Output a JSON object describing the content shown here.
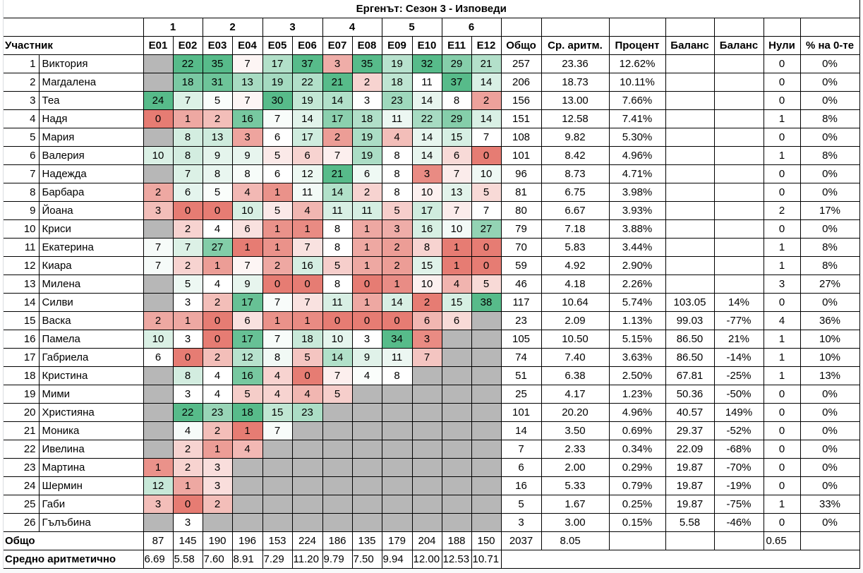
{
  "title": "Ергенът: Сезон 3 - Изповеди",
  "groups": [
    "1",
    "2",
    "3",
    "4",
    "5",
    "6"
  ],
  "headers": {
    "participant": "Участник",
    "episodes": [
      "E01",
      "E02",
      "E03",
      "E04",
      "E05",
      "E06",
      "E07",
      "E08",
      "E09",
      "E10",
      "E11",
      "E12"
    ],
    "total": "Общо",
    "avg": "Ср. аритм.",
    "percent": "Процент",
    "balance1": "Баланс",
    "balance2": "Баланс",
    "zeros": "Нули",
    "zero_pct": "% на 0-те"
  },
  "colors": {
    "min": "#e67c73",
    "mid": "#ffffff",
    "max": "#57bb8a",
    "empty": "#b7b7b7"
  },
  "rows": [
    {
      "n": "1",
      "name": "Виктория",
      "e": [
        null,
        22,
        35,
        7,
        17,
        37,
        3,
        35,
        19,
        32,
        29,
        21
      ],
      "total": "257",
      "avg": "23.36",
      "pct": "12.62%",
      "bal1": "",
      "bal2": "",
      "zeros": "0",
      "zpct": "0%"
    },
    {
      "n": "2",
      "name": "Магдалена",
      "e": [
        null,
        18,
        31,
        13,
        19,
        22,
        21,
        2,
        18,
        11,
        37,
        14
      ],
      "total": "206",
      "avg": "18.73",
      "pct": "10.11%",
      "bal1": "",
      "bal2": "",
      "zeros": "0",
      "zpct": "0%"
    },
    {
      "n": "3",
      "name": "Теа",
      "e": [
        24,
        7,
        5,
        7,
        30,
        19,
        14,
        3,
        23,
        14,
        8,
        2
      ],
      "total": "156",
      "avg": "13.00",
      "pct": "7.66%",
      "bal1": "",
      "bal2": "",
      "zeros": "0",
      "zpct": "0%"
    },
    {
      "n": "4",
      "name": "Надя",
      "e": [
        0,
        1,
        2,
        16,
        7,
        14,
        17,
        18,
        11,
        22,
        29,
        14
      ],
      "total": "151",
      "avg": "12.58",
      "pct": "7.41%",
      "bal1": "",
      "bal2": "",
      "zeros": "1",
      "zpct": "8%"
    },
    {
      "n": "5",
      "name": "Мария",
      "e": [
        null,
        8,
        13,
        3,
        6,
        17,
        2,
        19,
        4,
        14,
        15,
        7
      ],
      "total": "108",
      "avg": "9.82",
      "pct": "5.30%",
      "bal1": "",
      "bal2": "",
      "zeros": "0",
      "zpct": "0%"
    },
    {
      "n": "6",
      "name": "Валерия",
      "e": [
        10,
        8,
        9,
        9,
        5,
        6,
        7,
        19,
        8,
        14,
        6,
        0
      ],
      "total": "101",
      "avg": "8.42",
      "pct": "4.96%",
      "bal1": "",
      "bal2": "",
      "zeros": "1",
      "zpct": "8%"
    },
    {
      "n": "7",
      "name": "Надежда",
      "e": [
        null,
        7,
        8,
        8,
        6,
        12,
        21,
        6,
        8,
        3,
        7,
        10
      ],
      "total": "96",
      "avg": "8.73",
      "pct": "4.71%",
      "bal1": "",
      "bal2": "",
      "zeros": "0",
      "zpct": "0%"
    },
    {
      "n": "8",
      "name": "Барбара",
      "e": [
        2,
        6,
        5,
        4,
        1,
        11,
        14,
        2,
        8,
        10,
        13,
        5
      ],
      "total": "81",
      "avg": "6.75",
      "pct": "3.98%",
      "bal1": "",
      "bal2": "",
      "zeros": "0",
      "zpct": "0%"
    },
    {
      "n": "9",
      "name": "Йоана",
      "e": [
        3,
        0,
        0,
        10,
        5,
        4,
        11,
        11,
        5,
        17,
        7,
        7
      ],
      "total": "80",
      "avg": "6.67",
      "pct": "3.93%",
      "bal1": "",
      "bal2": "",
      "zeros": "2",
      "zpct": "17%"
    },
    {
      "n": "10",
      "name": "Криси",
      "e": [
        null,
        2,
        4,
        6,
        1,
        1,
        8,
        1,
        3,
        16,
        10,
        27
      ],
      "total": "79",
      "avg": "7.18",
      "pct": "3.88%",
      "bal1": "",
      "bal2": "",
      "zeros": "0",
      "zpct": "0%"
    },
    {
      "n": "11",
      "name": "Екатерина",
      "e": [
        7,
        7,
        27,
        1,
        1,
        7,
        8,
        1,
        2,
        8,
        1,
        0
      ],
      "total": "70",
      "avg": "5.83",
      "pct": "3.44%",
      "bal1": "",
      "bal2": "",
      "zeros": "1",
      "zpct": "8%"
    },
    {
      "n": "12",
      "name": "Киара",
      "e": [
        7,
        2,
        1,
        7,
        2,
        16,
        5,
        1,
        2,
        15,
        1,
        0
      ],
      "total": "59",
      "avg": "4.92",
      "pct": "2.90%",
      "bal1": "",
      "bal2": "",
      "zeros": "1",
      "zpct": "8%"
    },
    {
      "n": "13",
      "name": "Милена",
      "e": [
        null,
        5,
        4,
        9,
        0,
        0,
        8,
        0,
        1,
        10,
        4,
        5
      ],
      "total": "46",
      "avg": "4.18",
      "pct": "2.26%",
      "bal1": "",
      "bal2": "",
      "zeros": "3",
      "zpct": "27%"
    },
    {
      "n": "14",
      "name": "Силви",
      "e": [
        null,
        3,
        2,
        17,
        7,
        7,
        11,
        1,
        14,
        2,
        15,
        38
      ],
      "total": "117",
      "avg": "10.64",
      "pct": "5.74%",
      "bal1": "103.05",
      "bal2": "14%",
      "zeros": "0",
      "zpct": "0%"
    },
    {
      "n": "15",
      "name": "Васка",
      "e": [
        2,
        1,
        0,
        6,
        1,
        1,
        0,
        0,
        0,
        6,
        6,
        null
      ],
      "total": "23",
      "avg": "2.09",
      "pct": "1.13%",
      "bal1": "99.03",
      "bal2": "-77%",
      "zeros": "4",
      "zpct": "36%"
    },
    {
      "n": "16",
      "name": "Памела",
      "e": [
        10,
        3,
        0,
        17,
        7,
        18,
        10,
        3,
        34,
        3,
        null,
        null
      ],
      "total": "105",
      "avg": "10.50",
      "pct": "5.15%",
      "bal1": "86.50",
      "bal2": "21%",
      "zeros": "1",
      "zpct": "10%"
    },
    {
      "n": "17",
      "name": "Габриела",
      "e": [
        6,
        0,
        2,
        12,
        8,
        5,
        14,
        9,
        11,
        7,
        null,
        null
      ],
      "total": "74",
      "avg": "7.40",
      "pct": "3.63%",
      "bal1": "86.50",
      "bal2": "-14%",
      "zeros": "1",
      "zpct": "10%"
    },
    {
      "n": "18",
      "name": "Кристина",
      "e": [
        null,
        8,
        4,
        16,
        4,
        0,
        7,
        4,
        8,
        null,
        null,
        null
      ],
      "total": "51",
      "avg": "6.38",
      "pct": "2.50%",
      "bal1": "67.81",
      "bal2": "-25%",
      "zeros": "1",
      "zpct": "13%"
    },
    {
      "n": "19",
      "name": "Мими",
      "e": [
        null,
        3,
        4,
        5,
        4,
        4,
        5,
        null,
        null,
        null,
        null,
        null
      ],
      "total": "25",
      "avg": "4.17",
      "pct": "1.23%",
      "bal1": "50.36",
      "bal2": "-50%",
      "zeros": "0",
      "zpct": "0%"
    },
    {
      "n": "20",
      "name": "Християна",
      "e": [
        null,
        22,
        23,
        18,
        15,
        23,
        null,
        null,
        null,
        null,
        null,
        null
      ],
      "total": "101",
      "avg": "20.20",
      "pct": "4.96%",
      "bal1": "40.57",
      "bal2": "149%",
      "zeros": "0",
      "zpct": "0%"
    },
    {
      "n": "21",
      "name": "Моника",
      "e": [
        null,
        4,
        2,
        1,
        7,
        null,
        null,
        null,
        null,
        null,
        null,
        null
      ],
      "total": "14",
      "avg": "3.50",
      "pct": "0.69%",
      "bal1": "29.37",
      "bal2": "-52%",
      "zeros": "0",
      "zpct": "0%"
    },
    {
      "n": "22",
      "name": "Ивелина",
      "e": [
        null,
        2,
        1,
        4,
        null,
        null,
        null,
        null,
        null,
        null,
        null,
        null
      ],
      "total": "7",
      "avg": "2.33",
      "pct": "0.34%",
      "bal1": "22.09",
      "bal2": "-68%",
      "zeros": "0",
      "zpct": "0%"
    },
    {
      "n": "23",
      "name": "Мартина",
      "e": [
        1,
        2,
        3,
        null,
        null,
        null,
        null,
        null,
        null,
        null,
        null,
        null
      ],
      "total": "6",
      "avg": "2.00",
      "pct": "0.29%",
      "bal1": "19.87",
      "bal2": "-70%",
      "zeros": "0",
      "zpct": "0%"
    },
    {
      "n": "24",
      "name": "Шермин",
      "e": [
        12,
        1,
        3,
        null,
        null,
        null,
        null,
        null,
        null,
        null,
        null,
        null
      ],
      "total": "16",
      "avg": "5.33",
      "pct": "0.79%",
      "bal1": "19.87",
      "bal2": "-19%",
      "zeros": "0",
      "zpct": "0%"
    },
    {
      "n": "25",
      "name": "Габи",
      "e": [
        3,
        0,
        2,
        null,
        null,
        null,
        null,
        null,
        null,
        null,
        null,
        null
      ],
      "total": "5",
      "avg": "1.67",
      "pct": "0.25%",
      "bal1": "19.87",
      "bal2": "-75%",
      "zeros": "1",
      "zpct": "33%"
    },
    {
      "n": "26",
      "name": "Гълъбина",
      "e": [
        null,
        3,
        null,
        null,
        null,
        null,
        null,
        null,
        null,
        null,
        null,
        null
      ],
      "total": "3",
      "avg": "3.00",
      "pct": "0.15%",
      "bal1": "5.58",
      "bal2": "-46%",
      "zeros": "0",
      "zpct": "0%"
    }
  ],
  "totals": {
    "label": "Общо",
    "episodes": [
      "87",
      "145",
      "190",
      "196",
      "153",
      "224",
      "186",
      "135",
      "179",
      "204",
      "188",
      "150"
    ],
    "total": "2037",
    "avg": "8.05",
    "zeros": "0.65"
  },
  "averages": {
    "label": "Средно аритметично",
    "episodes": [
      "6.69",
      "5.58",
      "7.60",
      "8.91",
      "7.29",
      "11.20",
      "9.79",
      "7.50",
      "9.94",
      "12.00",
      "12.53",
      "10.71"
    ]
  }
}
